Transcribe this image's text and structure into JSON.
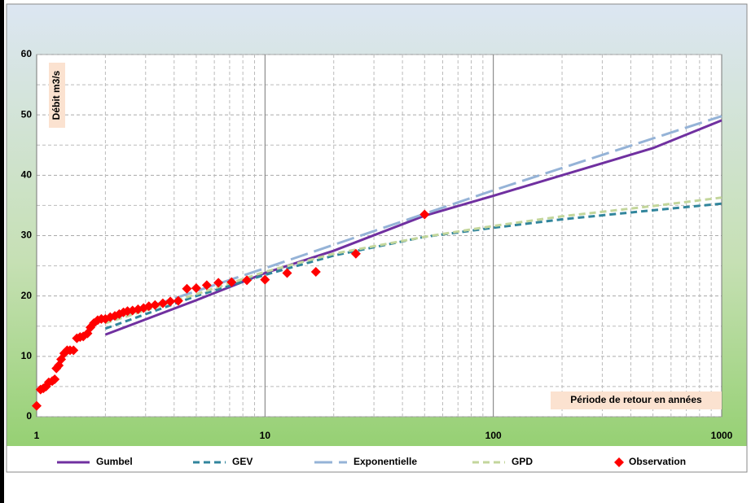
{
  "chart_data": {
    "type": "line",
    "y_label": "Débit m3/s",
    "x_label": "Période de retour en années",
    "log_x": true,
    "grid": true,
    "legend": "bottom",
    "xlim": [
      1,
      1000
    ],
    "xticks": [
      1,
      10,
      100,
      1000
    ],
    "ylim": [
      0,
      60
    ],
    "yticks": [
      0,
      10,
      20,
      30,
      40,
      50,
      60
    ],
    "series": [
      {
        "name": "Gumbel",
        "type": "line",
        "color": "#7030a0",
        "dash": "solid",
        "x": [
          2,
          5,
          10,
          20,
          50,
          100,
          200,
          500,
          1000
        ],
        "values": [
          13.6,
          19.3,
          23.8,
          27.5,
          33.3,
          36.6,
          40.0,
          44.5,
          49.1
        ]
      },
      {
        "name": "GEV",
        "type": "line",
        "color": "#31859c",
        "dash": "dash",
        "x": [
          2,
          5,
          10,
          20,
          50,
          100,
          200,
          500,
          1000
        ],
        "values": [
          14.6,
          20.0,
          23.5,
          26.7,
          29.8,
          31.3,
          32.7,
          34.2,
          35.3
        ]
      },
      {
        "name": "Exponentielle",
        "type": "line",
        "color": "#95b3d7",
        "dash": "longdash",
        "x": [
          2,
          10,
          100,
          1000
        ],
        "values": [
          15.8,
          24.6,
          37.5,
          49.8
        ]
      },
      {
        "name": "GPD",
        "type": "line",
        "color": "#c3d69b",
        "dash": "dash",
        "x": [
          2,
          5,
          10,
          20,
          50,
          100,
          200,
          500,
          1000
        ],
        "values": [
          15.5,
          20.3,
          24.0,
          27.0,
          29.8,
          31.6,
          33.2,
          34.9,
          36.3
        ]
      },
      {
        "name": "Observation",
        "type": "scatter",
        "color": "#ff0000",
        "marker": "diamond",
        "x": [
          1,
          1.04,
          1.07,
          1.1,
          1.13,
          1.17,
          1.2,
          1.22,
          1.25,
          1.28,
          1.32,
          1.36,
          1.4,
          1.45,
          1.5,
          1.55,
          1.6,
          1.67,
          1.72,
          1.78,
          1.85,
          1.92,
          2,
          2.1,
          2.2,
          2.3,
          2.4,
          2.5,
          2.63,
          2.78,
          2.94,
          3.1,
          3.3,
          3.57,
          3.85,
          4.17,
          4.55,
          5,
          5.56,
          6.25,
          7.14,
          8.33,
          10,
          12.5,
          16.7,
          25,
          50
        ],
        "values": [
          1.8,
          4.5,
          4.7,
          5,
          5.7,
          5.9,
          6.2,
          8,
          8.5,
          9.5,
          10.5,
          11,
          11,
          11,
          13,
          13.2,
          13.3,
          13.8,
          14.8,
          15.5,
          16,
          16.2,
          16.2,
          16.5,
          16.7,
          17,
          17.3,
          17.5,
          17.6,
          17.8,
          18,
          18.3,
          18.5,
          18.8,
          19.1,
          19.2,
          21.2,
          21.3,
          21.8,
          22.2,
          22.3,
          22.6,
          22.7,
          23.8,
          24,
          27,
          33.5
        ]
      }
    ]
  }
}
